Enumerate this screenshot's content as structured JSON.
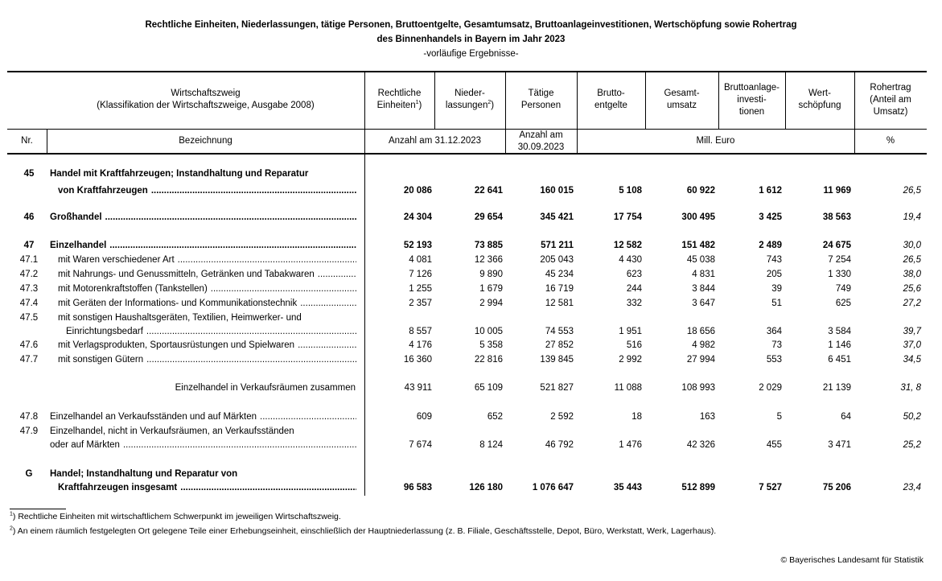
{
  "title": {
    "line1": "Rechtliche Einheiten, Niederlassungen, tätige Personen, Bruttoentgelte, Gesamtumsatz, Bruttoanlageinvestitionen, Wertschöpfung sowie Rohertrag",
    "line2": "des Binnenhandels in Bayern im Jahr 2023",
    "subtitle": "-vorläufige Ergebnisse-"
  },
  "header": {
    "wz_line1": "Wirtschaftszweig",
    "wz_line2": "(Klassifikation der Wirtschaftszweige, Ausgabe 2008)",
    "columns": [
      {
        "l1": "Rechtliche",
        "l2": "Einheiten",
        "sup": "1",
        "after": ")"
      },
      {
        "l1": "Nieder-",
        "l2": "lassungen",
        "sup": "2",
        "after": ")"
      },
      {
        "l1": "Tätige",
        "l2": "Personen"
      },
      {
        "l1": "Brutto-",
        "l2": "entgelte"
      },
      {
        "l1": "Gesamt-",
        "l2": "umsatz"
      },
      {
        "l1": "Bruttoanlage-",
        "l2": "investi-",
        "l3": "tionen"
      },
      {
        "l1": "Wert-",
        "l2": "schöpfung"
      },
      {
        "l1": "Rohertrag",
        "l2": "(Anteil am",
        "l3": "Umsatz)"
      }
    ],
    "nr": "Nr.",
    "bezeichnung": "Bezeichnung",
    "unit_count": "Anzahl am 31.12.2023",
    "unit_persons_l1": "Anzahl am",
    "unit_persons_l2": "30.09.2023",
    "unit_euro": "Mill. Euro",
    "unit_pct": "%"
  },
  "rows": [
    {
      "nr": "45",
      "lines": [
        "Handel mit Kraftfahrzeugen; Instandhaltung und Reparatur",
        "von Kraftfahrzeugen"
      ],
      "bold": true,
      "values": [
        "20 086",
        "22 641",
        "160 015",
        "5 108",
        "60 922",
        "1 612",
        "11 969",
        "26,5"
      ]
    },
    {
      "nr": "46",
      "lines": [
        "Großhandel"
      ],
      "bold": true,
      "values": [
        "24 304",
        "29 654",
        "345 421",
        "17 754",
        "300 495",
        "3 425",
        "38 563",
        "19,4"
      ]
    },
    {
      "nr": "47",
      "lines": [
        "Einzelhandel"
      ],
      "bold": true,
      "values": [
        "52 193",
        "73 885",
        "571 211",
        "12 582",
        "151 482",
        "2 489",
        "24 675",
        "30,0"
      ]
    },
    {
      "nr": "47.1",
      "lines": [
        "mit Waren verschiedener Art"
      ],
      "values": [
        "4 081",
        "12 366",
        "205 043",
        "4 430",
        "45 038",
        "743",
        "7 254",
        "26,5"
      ]
    },
    {
      "nr": "47.2",
      "lines": [
        "mit Nahrungs- und Genussmitteln, Getränken und Tabakwaren"
      ],
      "values": [
        "7 126",
        "9 890",
        "45 234",
        "623",
        "4 831",
        "205",
        "1 330",
        "38,0"
      ]
    },
    {
      "nr": "47.3",
      "lines": [
        "mit Motorenkraftstoffen (Tankstellen)"
      ],
      "values": [
        "1 255",
        "1 679",
        "16 719",
        "244",
        "3 844",
        "39",
        "749",
        "25,6"
      ]
    },
    {
      "nr": "47.4",
      "lines": [
        "mit Geräten der Informations- und Kommunikationstechnik"
      ],
      "values": [
        "2 357",
        "2 994",
        "12 581",
        "332",
        "3 647",
        "51",
        "625",
        "27,2"
      ]
    },
    {
      "nr": "47.5",
      "lines": [
        "mit sonstigen Haushaltsgeräten, Textilien, Heimwerker- und",
        "Einrichtungsbedarf"
      ],
      "values": [
        "8 557",
        "10 005",
        "74 553",
        "1 951",
        "18 656",
        "364",
        "3 584",
        "39,7"
      ]
    },
    {
      "nr": "47.6",
      "lines": [
        "mit Verlagsprodukten, Sportausrüstungen und Spielwaren"
      ],
      "values": [
        "4 176",
        "5 358",
        "27 852",
        "516",
        "4 982",
        "73",
        "1 146",
        "37,0"
      ]
    },
    {
      "nr": "47.7",
      "lines": [
        "mit sonstigen Gütern"
      ],
      "values": [
        "16 360",
        "22 816",
        "139 845",
        "2 992",
        "27 994",
        "553",
        "6 451",
        "34,5"
      ]
    },
    {
      "nr": "",
      "lines": [
        "Einzelhandel in Verkaufsräumen zusammen"
      ],
      "values": [
        "43 911",
        "65 109",
        "521 827",
        "11 088",
        "108 993",
        "2 029",
        "21 139",
        "31, 8"
      ]
    },
    {
      "nr": "47.8",
      "lines": [
        "Einzelhandel an Verkaufsständen und auf Märkten"
      ],
      "values": [
        "609",
        "652",
        "2 592",
        "18",
        "163",
        "5",
        "64",
        "50,2"
      ]
    },
    {
      "nr": "47.9",
      "lines": [
        "Einzelhandel, nicht in Verkaufsräumen, an Verkaufsständen",
        "oder auf Märkten"
      ],
      "values": [
        "7 674",
        "8 124",
        "46 792",
        "1 476",
        "42 326",
        "455",
        "3 471",
        "25,2"
      ]
    },
    {
      "nr": "G",
      "lines": [
        "Handel; Instandhaltung und Reparatur von",
        "Kraftfahrzeugen insgesamt"
      ],
      "bold": true,
      "values": [
        "96 583",
        "126 180",
        "1 076 647",
        "35 443",
        "512 899",
        "7 527",
        "75 206",
        "23,4"
      ]
    }
  ],
  "footnotes": [
    {
      "mark": "1",
      "text": ") Rechtliche Einheiten mit wirtschaftlichem Schwerpunkt im jeweiligen Wirtschaftszweig."
    },
    {
      "mark": "2",
      "text": ") An einem räumlich festgelegten Ort gelegene Teile einer Erhebungseinheit, einschließlich der Hauptniederlassung (z. B. Filiale, Geschäftsstelle, Depot, Büro, Werkstatt, Werk, Lagerhaus)."
    }
  ],
  "copyright": "© Bayerisches Landesamt für Statistik"
}
